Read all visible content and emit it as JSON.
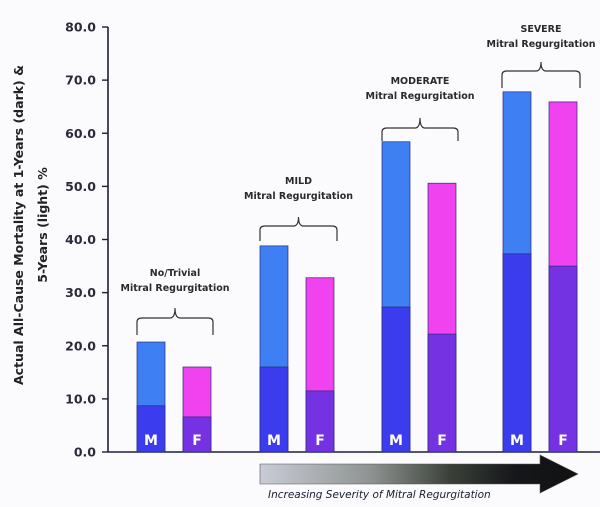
{
  "chart_data": {
    "type": "bar",
    "subtype": "grouped-overlay",
    "ylabel_lines": [
      "Actual All-Cause Mortality at 1-Years (dark) &",
      "5-Years (light) %"
    ],
    "ylim": [
      0,
      80
    ],
    "yticks": [
      "0.0",
      "10.0",
      "20.0",
      "30.0",
      "40.0",
      "50.0",
      "60.0",
      "70.0",
      "80.0"
    ],
    "ytick_values": [
      0,
      10,
      20,
      30,
      40,
      50,
      60,
      70,
      80
    ],
    "grid": false,
    "groups": [
      {
        "title": "No/Trivial",
        "subtitle": "Mitral Regurgitation"
      },
      {
        "title": "MILD",
        "subtitle": "Mitral Regurgitation"
      },
      {
        "title": "MODERATE",
        "subtitle": "Mitral Regurgitation"
      },
      {
        "title": "SEVERE",
        "subtitle": "Mitral Regurgitation"
      }
    ],
    "bar_labels": [
      "M",
      "F"
    ],
    "series": [
      {
        "name": "Male 5-Years (light)",
        "sex": "M",
        "horizon": "5-Years",
        "values": [
          20.7,
          38.8,
          58.4,
          67.8
        ]
      },
      {
        "name": "Male 1-Year (dark)",
        "sex": "M",
        "horizon": "1-Year",
        "values": [
          8.7,
          16.0,
          27.3,
          37.3
        ]
      },
      {
        "name": "Female 5-Years (light)",
        "sex": "F",
        "horizon": "5-Years",
        "values": [
          16.0,
          32.8,
          50.6,
          65.9
        ]
      },
      {
        "name": "Female 1-Year (dark)",
        "sex": "F",
        "horizon": "1-Year",
        "values": [
          6.6,
          11.5,
          22.2,
          35.0
        ]
      }
    ],
    "colors": {
      "male_light": "#3f7ff4",
      "male_dark": "#3b3cee",
      "female_light": "#f043ef",
      "female_dark": "#7432e2",
      "axis": "#1e1e3a"
    },
    "annotation": "Increasing Severity of Mitral Regurgitation"
  }
}
